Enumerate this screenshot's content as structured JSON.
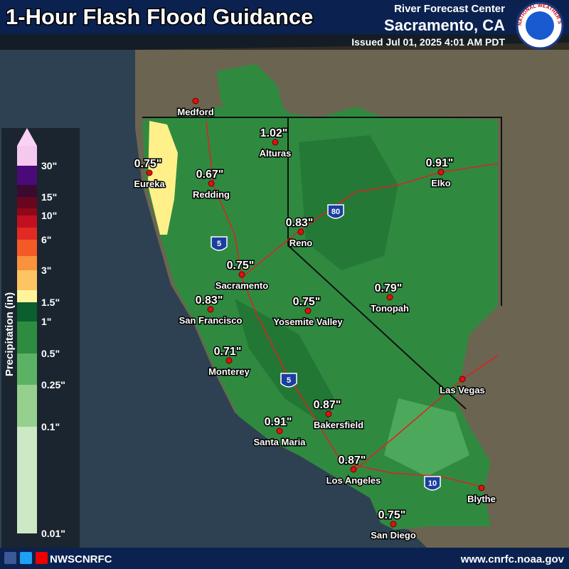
{
  "header": {
    "title": "1-Hour Flash Flood Guidance",
    "office_line": "River Forecast Center",
    "office": "Sacramento, CA",
    "issued": "Issued Jul 01, 2025 4:01 AM PDT",
    "logo_text": "NATIONAL WEATHER SERVICE"
  },
  "legend": {
    "title": "Precipitation (in)",
    "labels": [
      "30\"",
      "15\"",
      "10\"",
      "6\"",
      "3\"",
      "1.5\"",
      "1\"",
      "0.5\"",
      "0.25\"",
      "0.1\"",
      "0.01\""
    ]
  },
  "cities": [
    {
      "name": "Medford"
    },
    {
      "name": "Alturas",
      "value": "1.02\""
    },
    {
      "name": "Eureka",
      "value": "0.75\""
    },
    {
      "name": "Redding",
      "value": "0.67\""
    },
    {
      "name": "Elko",
      "value": "0.91\""
    },
    {
      "name": "Reno",
      "value": "0.83\""
    },
    {
      "name": "Sacramento",
      "value": "0.75\""
    },
    {
      "name": "Tonopah",
      "value": "0.79\""
    },
    {
      "name": "San Francisco",
      "value": "0.83\""
    },
    {
      "name": "Yosemite Valley",
      "value": "0.75\""
    },
    {
      "name": "Monterey",
      "value": "0.71\""
    },
    {
      "name": "Las Vegas"
    },
    {
      "name": "Bakersfield",
      "value": "0.87\""
    },
    {
      "name": "Santa Maria",
      "value": "0.91\""
    },
    {
      "name": "Los Angeles",
      "value": "0.87\""
    },
    {
      "name": "Blythe"
    },
    {
      "name": "San Diego",
      "value": "0.75\""
    }
  ],
  "highways": [
    "5",
    "80",
    "5",
    "10"
  ],
  "footer": {
    "handle": "NWSCNRFC",
    "url": "www.cnrfc.noaa.gov"
  }
}
